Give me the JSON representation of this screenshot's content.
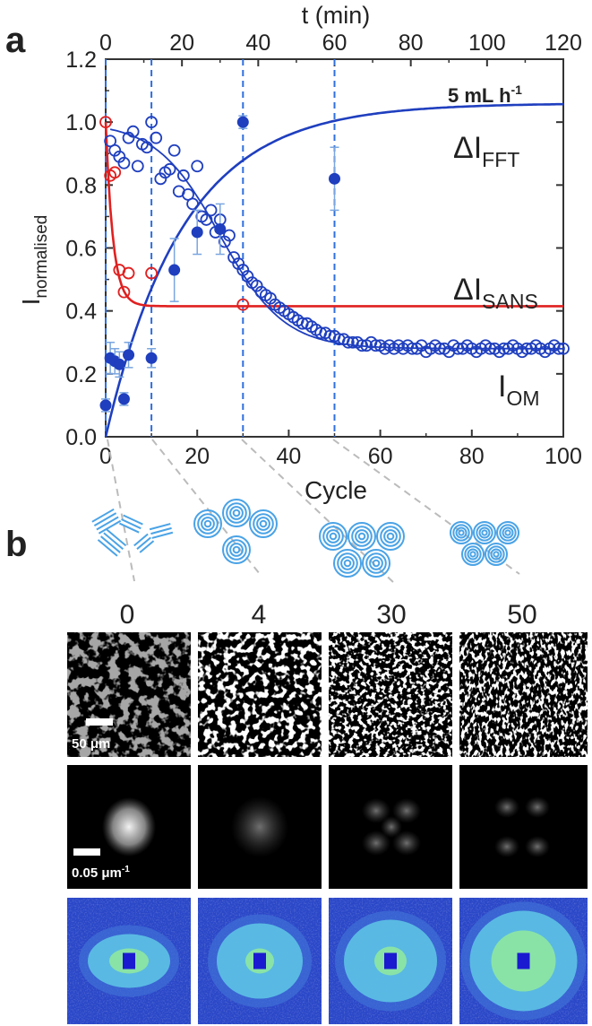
{
  "panel_labels": {
    "a": "a",
    "b": "b"
  },
  "chart_data": {
    "type": "scatter",
    "title": "",
    "xlabel": "Cycle",
    "x2label": "t (min)",
    "ylabel_main": "I",
    "ylabel_sub": "normalised",
    "xlim": [
      0,
      100
    ],
    "x2lim": [
      0,
      120
    ],
    "ylim": [
      0,
      1.2
    ],
    "x_ticks": [
      "0",
      "20",
      "40",
      "60",
      "80",
      "100"
    ],
    "x2_ticks": [
      "0",
      "20",
      "40",
      "60",
      "80",
      "100",
      "120"
    ],
    "y_ticks": [
      "0.0",
      "0.2",
      "0.4",
      "0.6",
      "0.8",
      "1.0",
      "1.2"
    ],
    "annotation": "5 mL h",
    "annotation_sup": "-1",
    "vlines_cycle": [
      0,
      10,
      30,
      50
    ],
    "colors": {
      "blue": "#1f3fbf",
      "red": "#e02020",
      "dash": "#2f6fe0",
      "error": "#7aa6e0"
    },
    "series": [
      {
        "name": "ΔI",
        "name_sub": "FFT",
        "kind": "filled-marker",
        "color": "#1f3fbf",
        "x": [
          0,
          1,
          2,
          3,
          4,
          5,
          10,
          15,
          20,
          25,
          30,
          50
        ],
        "y": [
          0.1,
          0.25,
          0.24,
          0.23,
          0.12,
          0.26,
          0.25,
          0.53,
          0.65,
          0.66,
          1.0,
          0.82
        ],
        "err": [
          0.02,
          0.05,
          0.04,
          0.04,
          0.02,
          0.04,
          0.03,
          0.1,
          0.07,
          0.08,
          0.02,
          0.1
        ],
        "fit": {
          "form": "A*(1-exp(-x/tau))",
          "A": 1.06,
          "tau": 17
        }
      },
      {
        "name": "ΔI",
        "name_sub": "SANS",
        "kind": "open-marker",
        "color": "#e02020",
        "x": [
          0,
          1,
          2,
          3,
          4,
          5,
          10,
          30
        ],
        "y": [
          1.0,
          0.83,
          0.84,
          0.53,
          0.46,
          0.52,
          0.52,
          0.42
        ],
        "fit": {
          "form": "c+(1-c)*exp(-x/tau)",
          "c": 0.415,
          "tau": 1.6
        }
      },
      {
        "name": "I",
        "name_sub": "OM",
        "kind": "open-marker",
        "color": "#1f3fbf",
        "x": [
          1,
          2,
          3,
          4,
          5,
          6,
          7,
          8,
          9,
          10,
          11,
          12,
          13,
          14,
          15,
          16,
          17,
          18,
          19,
          20,
          21,
          22,
          23,
          24,
          25,
          26,
          27,
          28,
          29,
          30,
          31,
          32,
          33,
          34,
          35,
          36,
          37,
          38,
          39,
          40,
          41,
          42,
          43,
          44,
          45,
          46,
          47,
          48,
          49,
          50,
          51,
          52,
          53,
          54,
          55,
          56,
          57,
          58,
          59,
          60,
          61,
          62,
          63,
          64,
          65,
          66,
          67,
          68,
          69,
          70,
          71,
          72,
          73,
          74,
          75,
          76,
          77,
          78,
          79,
          80,
          81,
          82,
          83,
          84,
          85,
          86,
          87,
          88,
          89,
          90,
          91,
          92,
          93,
          94,
          95,
          96,
          97,
          98,
          99,
          100
        ],
        "y": [
          0.94,
          0.91,
          0.89,
          0.87,
          0.95,
          0.97,
          0.86,
          0.93,
          0.92,
          1.0,
          0.95,
          0.82,
          0.84,
          0.85,
          0.91,
          0.78,
          0.83,
          0.77,
          0.74,
          0.86,
          0.7,
          0.69,
          0.72,
          0.65,
          0.69,
          0.62,
          0.64,
          0.57,
          0.55,
          0.53,
          0.51,
          0.49,
          0.48,
          0.46,
          0.45,
          0.44,
          0.42,
          0.41,
          0.4,
          0.39,
          0.38,
          0.37,
          0.36,
          0.36,
          0.35,
          0.34,
          0.33,
          0.33,
          0.32,
          0.32,
          0.31,
          0.31,
          0.3,
          0.3,
          0.3,
          0.29,
          0.29,
          0.3,
          0.29,
          0.29,
          0.28,
          0.29,
          0.28,
          0.29,
          0.28,
          0.29,
          0.28,
          0.28,
          0.29,
          0.27,
          0.28,
          0.29,
          0.28,
          0.28,
          0.27,
          0.29,
          0.28,
          0.28,
          0.29,
          0.28,
          0.27,
          0.28,
          0.29,
          0.28,
          0.28,
          0.27,
          0.28,
          0.28,
          0.29,
          0.28,
          0.27,
          0.28,
          0.28,
          0.29,
          0.28,
          0.27,
          0.28,
          0.29,
          0.28,
          0.28
        ],
        "fit": {
          "form": "c+(1-c)/(1+exp((x-x0)/w))",
          "c": 0.28,
          "x0": 25,
          "w": 7
        }
      }
    ]
  },
  "panel_b": {
    "cycles": [
      "0",
      "4",
      "30",
      "50"
    ],
    "schematics": [
      "lamellar-flakes",
      "scattered-vesicles",
      "packed-vesicles",
      "dense-vesicles"
    ],
    "om_scale_bar": "50 μm",
    "fft_scale_bar_value": "0.05 μm",
    "fft_scale_bar_sup": "-1",
    "sans_colors": {
      "background": "#2a47c8",
      "ring": "#5fc8e6",
      "core": "#8ee8a0",
      "beamstop": "#1a1ad0"
    }
  }
}
